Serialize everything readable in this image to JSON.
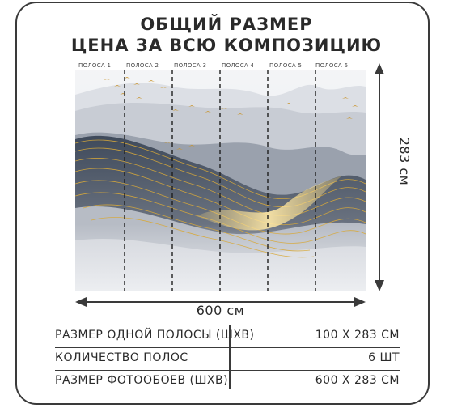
{
  "title_line1": "ОБЩИЙ РАЗМЕР",
  "title_line2": "ЦЕНА ЗА ВСЮ КОМПОЗИЦИЮ",
  "stripes": [
    "ПОЛОСА 1",
    "ПОЛОСА 2",
    "ПОЛОСА 3",
    "ПОЛОСА 4",
    "ПОЛОСА 5",
    "ПОЛОСА 6"
  ],
  "width_label": "600 см",
  "height_label": "283 см",
  "specs": [
    {
      "label": "РАЗМЕР ОДНОЙ ПОЛОСЫ (ШХВ)",
      "value": "100 Х 283 СМ"
    },
    {
      "label": "КОЛИЧЕСТВО ПОЛОС",
      "value": "6 ШТ"
    },
    {
      "label": "РАЗМЕР ФОТООБОЕВ (ШХВ)",
      "value": "600 Х 283 СМ"
    }
  ],
  "colors": {
    "gold": "#d8a93a",
    "slate": "#4a5566",
    "mist": "#c9ccd2",
    "outline": "#3a3a3a"
  }
}
